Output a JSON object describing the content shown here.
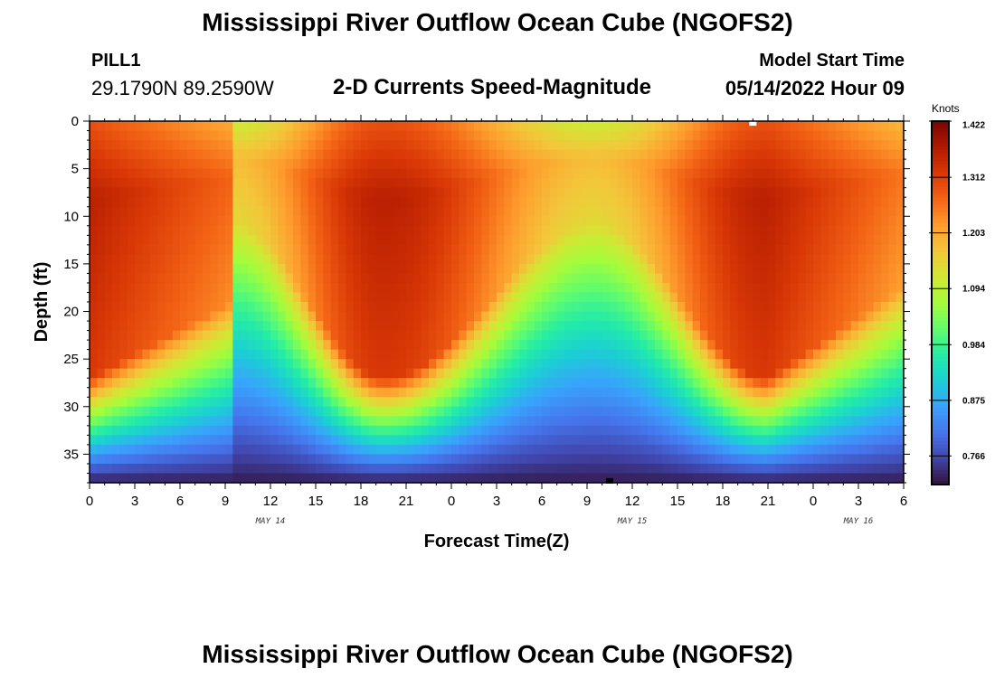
{
  "header": {
    "title": "Mississippi River Outflow Ocean Cube (NGOFS2)",
    "station_id": "PILL1",
    "station_coords": "29.1790N  89.2590W",
    "subtitle": "2-D Currents Speed-Magnitude",
    "model_start_label": "Model Start Time",
    "model_start_value": "05/14/2022 Hour 09"
  },
  "footer": {
    "title": "Mississippi River Outflow Ocean Cube (NGOFS2)"
  },
  "chart_data": {
    "type": "heatmap",
    "title": "2-D Currents Speed-Magnitude",
    "xlabel": "Forecast Time(Z)",
    "ylabel": "Depth (ft)",
    "x_start_hour": 0,
    "x_end_hour": 54,
    "x_ticks": [
      {
        "hour": 0,
        "label": "0"
      },
      {
        "hour": 3,
        "label": "3"
      },
      {
        "hour": 6,
        "label": "6"
      },
      {
        "hour": 9,
        "label": "9"
      },
      {
        "hour": 12,
        "label": "12"
      },
      {
        "hour": 15,
        "label": "15"
      },
      {
        "hour": 18,
        "label": "18"
      },
      {
        "hour": 21,
        "label": "21"
      },
      {
        "hour": 24,
        "label": "0"
      },
      {
        "hour": 27,
        "label": "3"
      },
      {
        "hour": 30,
        "label": "6"
      },
      {
        "hour": 33,
        "label": "9"
      },
      {
        "hour": 36,
        "label": "12"
      },
      {
        "hour": 39,
        "label": "15"
      },
      {
        "hour": 42,
        "label": "18"
      },
      {
        "hour": 45,
        "label": "21"
      },
      {
        "hour": 48,
        "label": "0"
      },
      {
        "hour": 51,
        "label": "3"
      },
      {
        "hour": 54,
        "label": "6"
      }
    ],
    "day_labels": [
      {
        "hour": 12,
        "label": "MAY 14"
      },
      {
        "hour": 36,
        "label": "MAY 15"
      },
      {
        "hour": 51,
        "label": "MAY 16"
      }
    ],
    "ylim": [
      0,
      38
    ],
    "y_ticks": [
      0,
      5,
      10,
      15,
      20,
      25,
      30,
      35
    ],
    "colorbar": {
      "units": "Knots",
      "min": 0.71,
      "max": 1.422,
      "labels": [
        "1.422",
        "1.312",
        "1.203",
        "1.094",
        "0.984",
        "0.875",
        "0.766"
      ],
      "label_values": [
        1.422,
        1.312,
        1.203,
        1.094,
        0.984,
        0.875,
        0.766
      ],
      "colors": [
        "#30123b",
        "#4145ab",
        "#4675ed",
        "#39a2fc",
        "#1bcfd4",
        "#24eca6",
        "#61fc6c",
        "#a4fc3b",
        "#d1e834",
        "#f3c63a",
        "#fe9b2d",
        "#f36315",
        "#d93806",
        "#b11901",
        "#7a0402"
      ]
    },
    "speed_profile": {
      "description_free": true,
      "surface_peaks_hours": [
        19.5,
        45
      ],
      "surface_troughs_hours": [
        9.5,
        33.5
      ],
      "surface_peak_knots": 1.36,
      "surface_trough_knots": 1.18,
      "bottom_knots": 0.72
    },
    "markers": [
      {
        "hour": 44,
        "depth": 0.2,
        "color": "#ffffff"
      },
      {
        "hour": 34.5,
        "depth": 37.8,
        "color": "#000000"
      }
    ]
  }
}
